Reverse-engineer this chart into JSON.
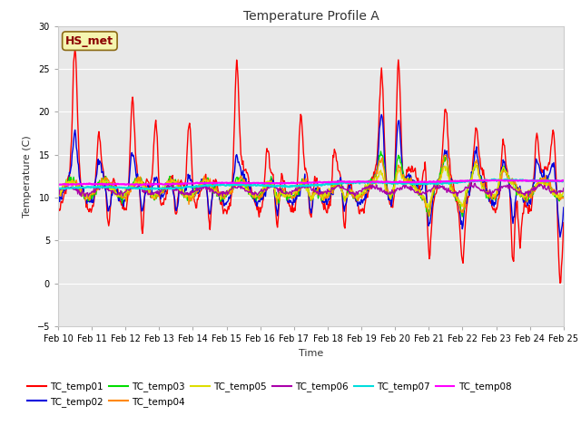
{
  "title": "Temperature Profile A",
  "xlabel": "Time",
  "ylabel": "Temperature (C)",
  "annotation": "HS_met",
  "ylim": [
    -5,
    30
  ],
  "xlim": [
    0,
    15
  ],
  "series_colors": {
    "TC_temp01": "#ff0000",
    "TC_temp02": "#0000dd",
    "TC_temp03": "#00dd00",
    "TC_temp04": "#ff8800",
    "TC_temp05": "#dddd00",
    "TC_temp06": "#aa00aa",
    "TC_temp07": "#00dddd",
    "TC_temp08": "#ff00ff"
  },
  "xtick_labels": [
    "Feb 10",
    "Feb 11",
    "Feb 12",
    "Feb 13",
    "Feb 14",
    "Feb 15",
    "Feb 16",
    "Feb 17",
    "Feb 18",
    "Feb 19",
    "Feb 20",
    "Feb 21",
    "Feb 22",
    "Feb 23",
    "Feb 24",
    "Feb 25"
  ],
  "yticks": [
    -5,
    0,
    5,
    10,
    15,
    20,
    25,
    30
  ],
  "fig_bg": "#ffffff",
  "axes_bg": "#e8e8e8",
  "grid_color": "#ffffff",
  "title_fontsize": 10,
  "axis_label_fontsize": 8,
  "tick_fontsize": 7,
  "legend_fontsize": 7.5,
  "annotation_color": "#8B0000",
  "annotation_bbox_fc": "#f5f5b0",
  "annotation_bbox_ec": "#8B6914"
}
